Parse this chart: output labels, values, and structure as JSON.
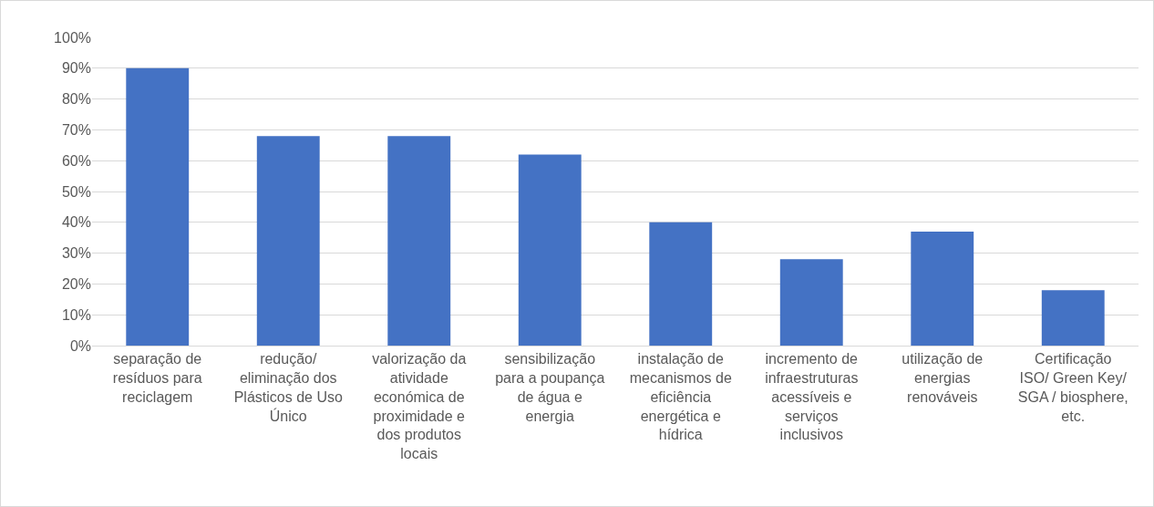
{
  "chart_data": {
    "type": "bar",
    "categories": [
      "separação de resíduos para reciclagem",
      "redução/ eliminação dos Plásticos de Uso Único",
      "valorização da atividade económica de proximidade e dos produtos locais",
      "sensibilização para a poupança de água e energia",
      "instalação de mecanismos de eficiência energética e hídrica",
      "incremento de infraestruturas acessíveis e serviços inclusivos",
      "utilização de energias renováveis",
      "Certificação ISO/ Green Key/ SGA / biosphere, etc."
    ],
    "values": [
      90,
      68,
      68,
      62,
      40,
      28,
      37,
      18
    ],
    "color": "#4472c4",
    "ylim": [
      0,
      100
    ],
    "yticks": [
      {
        "value": 0,
        "label": "0%"
      },
      {
        "value": 10,
        "label": "10%"
      },
      {
        "value": 20,
        "label": "20%"
      },
      {
        "value": 30,
        "label": "30%"
      },
      {
        "value": 40,
        "label": "40%"
      },
      {
        "value": 50,
        "label": "50%"
      },
      {
        "value": 60,
        "label": "60%"
      },
      {
        "value": 70,
        "label": "70%"
      },
      {
        "value": 80,
        "label": "80%"
      },
      {
        "value": 90,
        "label": "90%"
      },
      {
        "value": 100,
        "label": "100%"
      }
    ],
    "grid": "y"
  }
}
